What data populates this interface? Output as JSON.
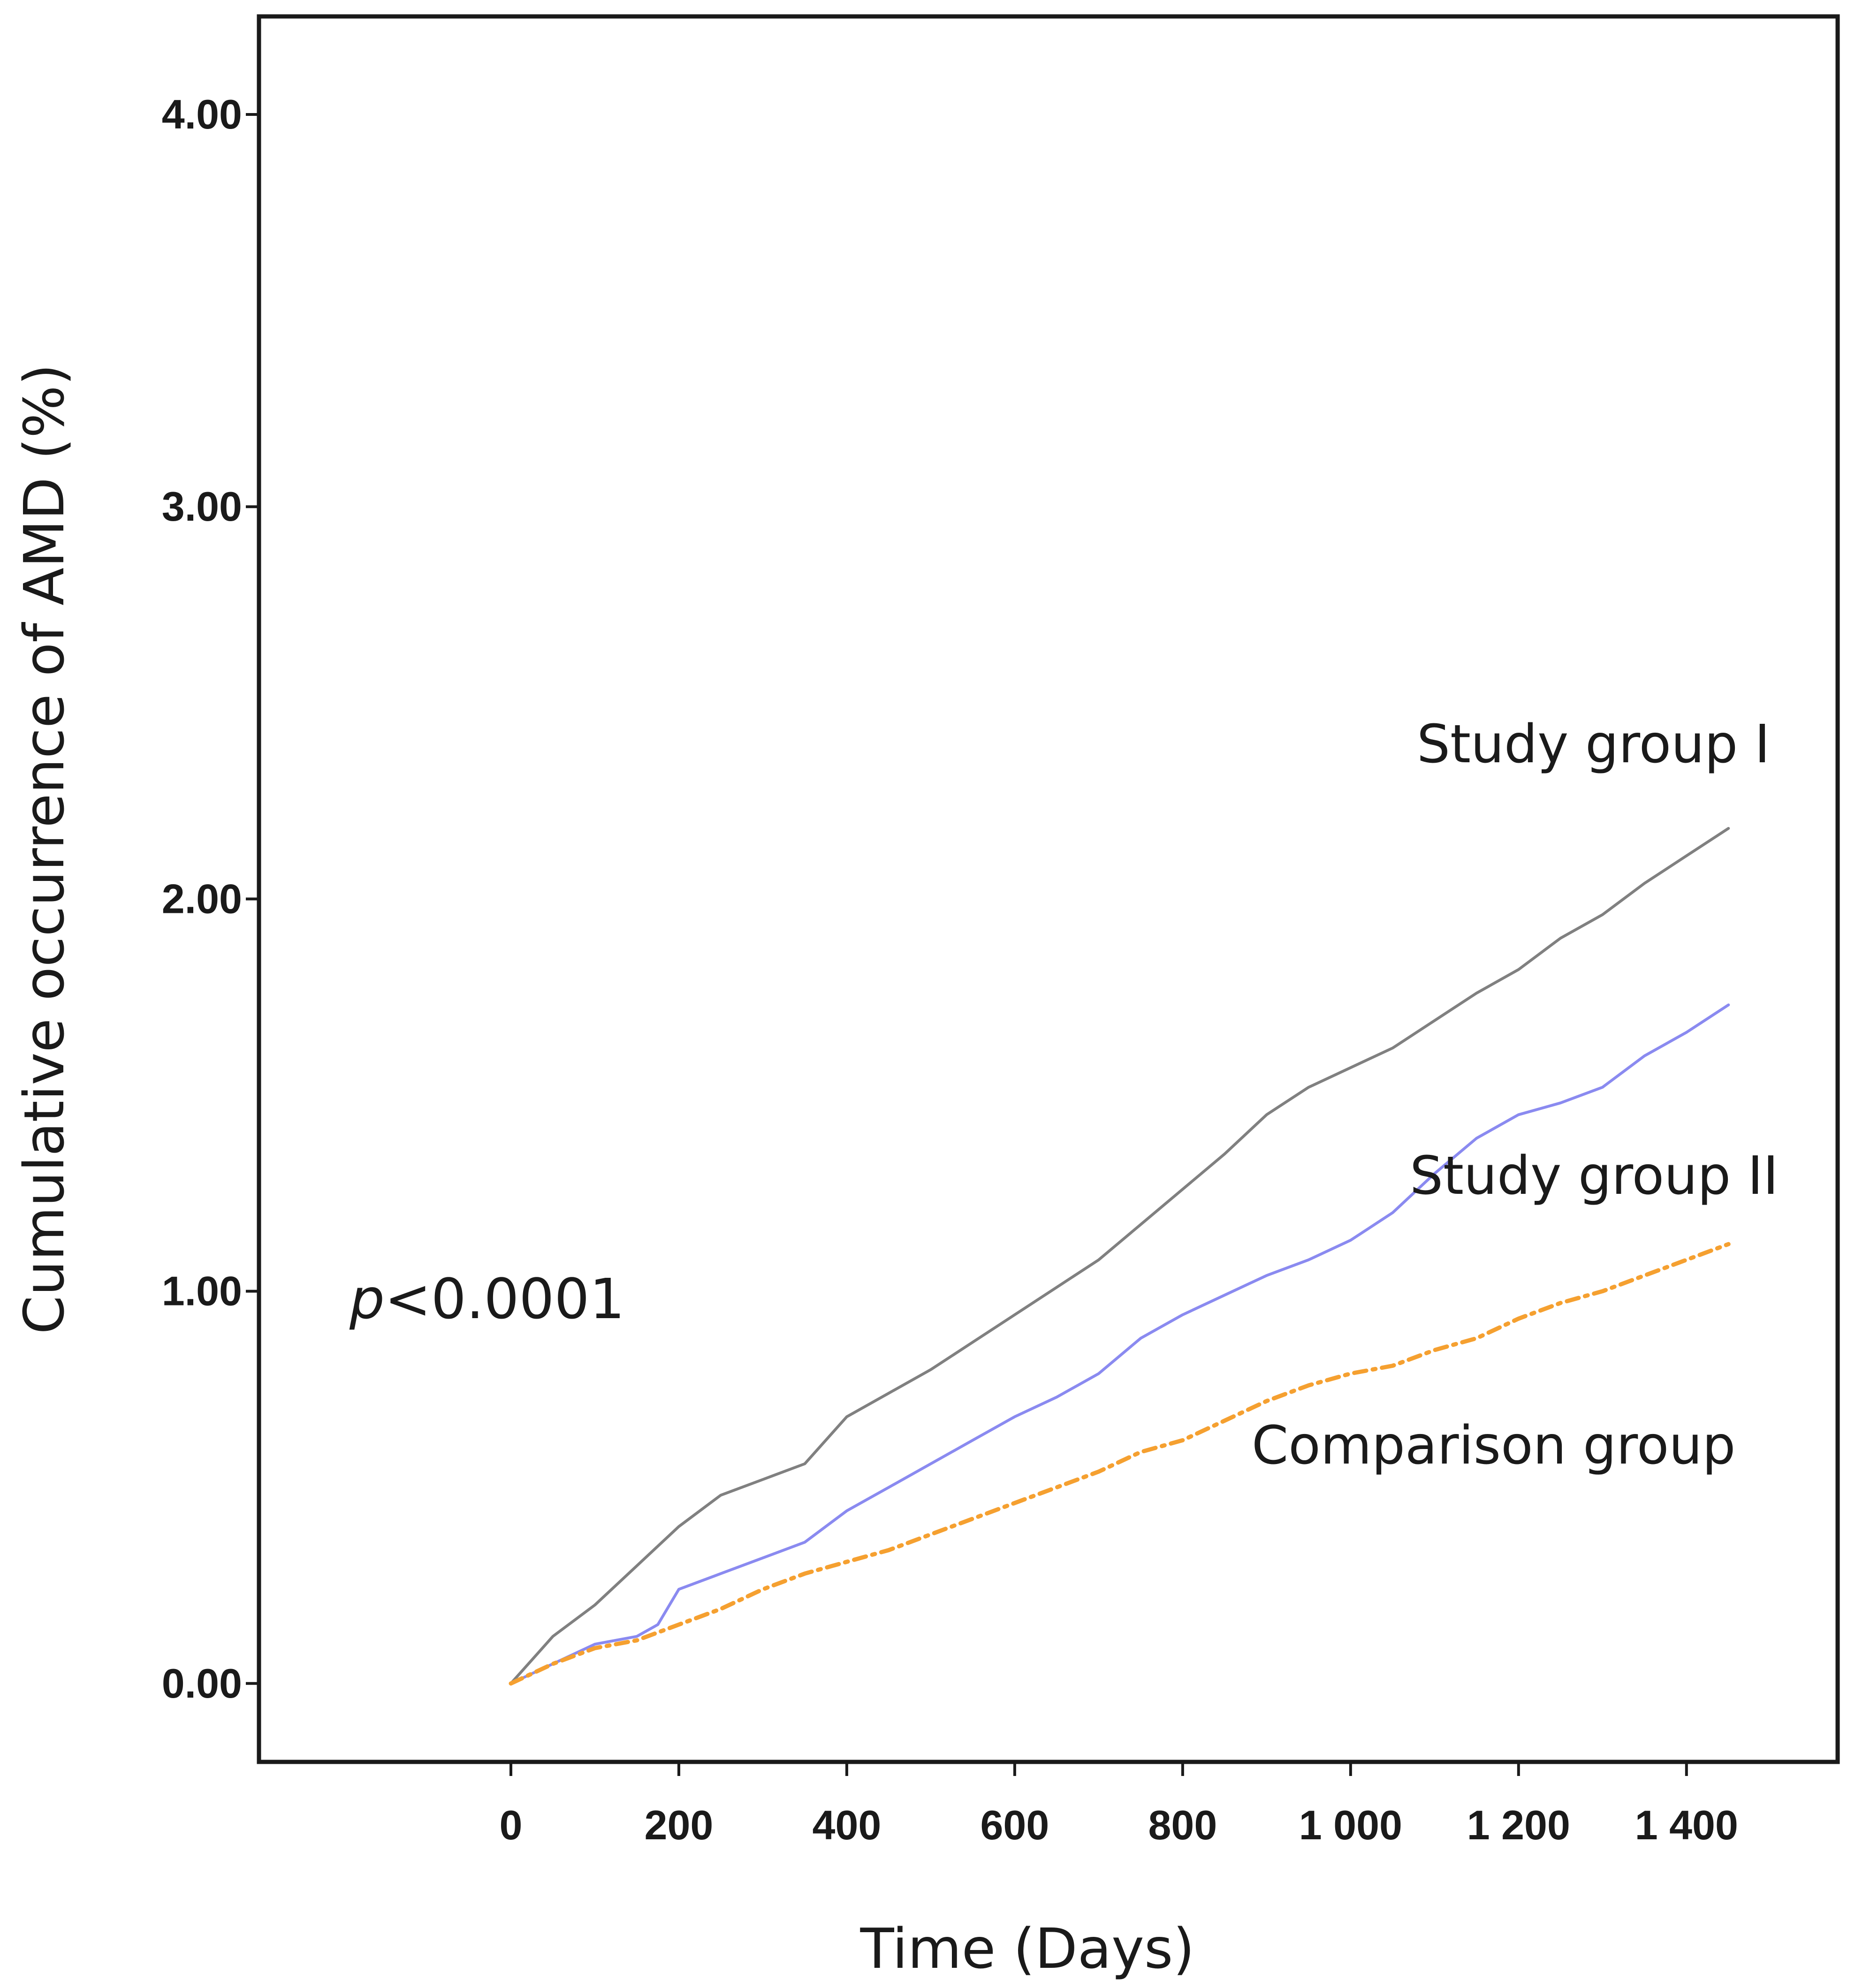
{
  "chart_data": {
    "type": "line",
    "title": "",
    "xlabel": "Time (Days)",
    "ylabel": "Cumulative occurrence of AMD (%)",
    "xlim": [
      -300,
      1580
    ],
    "ylim": [
      -0.2,
      4.25
    ],
    "x_ticks": [
      {
        "value": 0,
        "label": "0"
      },
      {
        "value": 200,
        "label": "200"
      },
      {
        "value": 400,
        "label": "400"
      },
      {
        "value": 600,
        "label": "600"
      },
      {
        "value": 800,
        "label": "800"
      },
      {
        "value": 1000,
        "label": "1 000"
      },
      {
        "value": 1200,
        "label": "1 200"
      },
      {
        "value": 1400,
        "label": "1 400"
      }
    ],
    "y_ticks": [
      {
        "value": 0,
        "label": "0.00"
      },
      {
        "value": 1,
        "label": "1.00"
      },
      {
        "value": 2,
        "label": "2.00"
      },
      {
        "value": 3,
        "label": "3.00"
      },
      {
        "value": 4,
        "label": "4.00"
      }
    ],
    "grid": false,
    "annotation": {
      "text": "p<0.0001",
      "italic_prefix": "p",
      "rest": "<0.0001"
    },
    "series": [
      {
        "name": "Study group I",
        "color": "#808080",
        "dash": "solid",
        "x": [
          0,
          50,
          100,
          150,
          200,
          250,
          300,
          350,
          400,
          450,
          500,
          550,
          600,
          650,
          700,
          750,
          800,
          850,
          900,
          950,
          1000,
          1050,
          1100,
          1150,
          1200,
          1250,
          1300,
          1350,
          1400,
          1450
        ],
        "y": [
          0.0,
          0.12,
          0.2,
          0.3,
          0.4,
          0.48,
          0.52,
          0.56,
          0.68,
          0.74,
          0.8,
          0.87,
          0.94,
          1.01,
          1.08,
          1.17,
          1.26,
          1.35,
          1.45,
          1.52,
          1.57,
          1.62,
          1.69,
          1.76,
          1.82,
          1.9,
          1.96,
          2.04,
          2.11,
          2.18
        ]
      },
      {
        "name": "Study group II",
        "color": "#8a8af0",
        "dash": "solid",
        "x": [
          0,
          50,
          100,
          150,
          175,
          200,
          250,
          300,
          350,
          400,
          450,
          500,
          550,
          600,
          650,
          700,
          750,
          800,
          850,
          900,
          950,
          1000,
          1050,
          1100,
          1150,
          1200,
          1250,
          1300,
          1350,
          1400,
          1450
        ],
        "y": [
          0.0,
          0.05,
          0.1,
          0.12,
          0.15,
          0.24,
          0.28,
          0.32,
          0.36,
          0.44,
          0.5,
          0.56,
          0.62,
          0.68,
          0.73,
          0.79,
          0.88,
          0.94,
          0.99,
          1.04,
          1.08,
          1.13,
          1.2,
          1.3,
          1.39,
          1.45,
          1.48,
          1.52,
          1.6,
          1.66,
          1.73
        ]
      },
      {
        "name": "Comparison group",
        "color": "#f5a030",
        "dash": "dash-dot",
        "x": [
          0,
          50,
          100,
          150,
          200,
          250,
          300,
          350,
          400,
          450,
          500,
          550,
          600,
          650,
          700,
          750,
          800,
          850,
          900,
          950,
          1000,
          1050,
          1100,
          1150,
          1200,
          1250,
          1300,
          1350,
          1400,
          1450
        ],
        "y": [
          0.0,
          0.05,
          0.09,
          0.11,
          0.15,
          0.19,
          0.24,
          0.28,
          0.31,
          0.34,
          0.38,
          0.42,
          0.46,
          0.5,
          0.54,
          0.59,
          0.62,
          0.67,
          0.72,
          0.76,
          0.79,
          0.81,
          0.85,
          0.88,
          0.93,
          0.97,
          1.0,
          1.04,
          1.08,
          1.12
        ]
      }
    ]
  }
}
